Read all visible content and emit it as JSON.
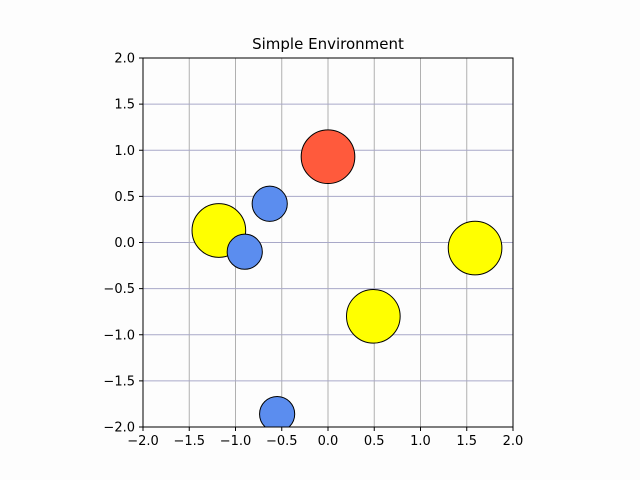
{
  "chart_data": {
    "type": "scatter",
    "title": "Simple Environment",
    "xlabel": "",
    "ylabel": "",
    "xlim": [
      -2.0,
      2.0
    ],
    "ylim": [
      -2.0,
      2.0
    ],
    "grid": true,
    "xticks": [
      "−2.0",
      "−1.5",
      "−1.0",
      "−0.5",
      "0.0",
      "0.5",
      "1.0",
      "1.5",
      "2.0"
    ],
    "yticks": [
      "−2.0",
      "−1.5",
      "−1.0",
      "−0.5",
      "0.0",
      "0.5",
      "1.0",
      "1.5",
      "2.0"
    ],
    "xtick_values": [
      -2.0,
      -1.5,
      -1.0,
      -0.5,
      0.0,
      0.5,
      1.0,
      1.5,
      2.0
    ],
    "ytick_values": [
      -2.0,
      -1.5,
      -1.0,
      -0.5,
      0.0,
      0.5,
      1.0,
      1.5,
      2.0
    ],
    "circles": [
      {
        "kind": "red",
        "color": "#ff5a3c",
        "x": 0.0,
        "y": 0.93,
        "r": 0.29
      },
      {
        "kind": "blue",
        "color": "#5b8def",
        "x": -0.63,
        "y": 0.42,
        "r": 0.19
      },
      {
        "kind": "yellow",
        "color": "#ffff00",
        "x": -1.18,
        "y": 0.13,
        "r": 0.29
      },
      {
        "kind": "blue",
        "color": "#5b8def",
        "x": -0.9,
        "y": -0.1,
        "r": 0.19
      },
      {
        "kind": "yellow",
        "color": "#ffff00",
        "x": 1.59,
        "y": -0.06,
        "r": 0.29
      },
      {
        "kind": "yellow",
        "color": "#ffff00",
        "x": 0.49,
        "y": -0.8,
        "r": 0.29
      },
      {
        "kind": "blue",
        "color": "#5b8def",
        "x": -0.55,
        "y": -1.86,
        "r": 0.19
      }
    ]
  }
}
